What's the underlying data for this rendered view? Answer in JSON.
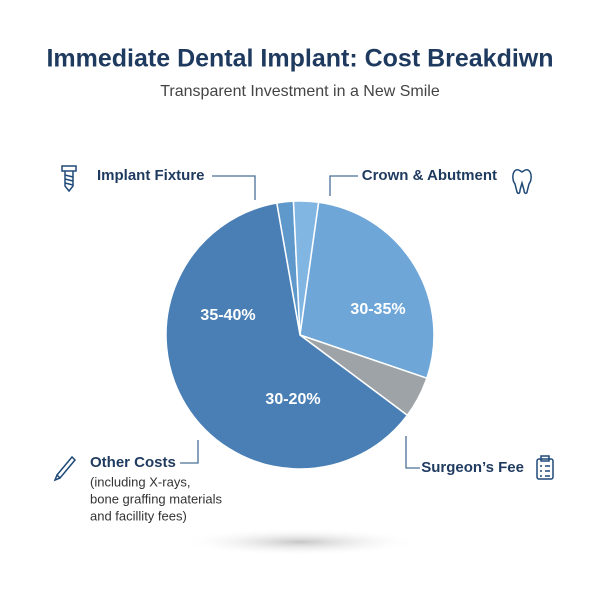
{
  "chart_data": {
    "type": "pie",
    "title": "Immediate Dental Implant: Cost Breakdiwn",
    "subtitle": "Transparent Investment in a New Smile",
    "values": [
      2,
      3,
      28,
      5,
      62
    ],
    "colors": [
      "#5f98cb",
      "#82b6e2",
      "#6ea6d8",
      "#9ea3a8",
      "#4a7fb5"
    ],
    "annotations": [
      "35-40%",
      "30-35%",
      "30-20%"
    ],
    "callouts": [
      {
        "label": "Implant Fixture"
      },
      {
        "label": "Crown & Abutment"
      },
      {
        "label": "Surgeon’s Fee"
      },
      {
        "label": "Other Costs",
        "note": [
          "(including X-rays,",
          "bone graffing materials",
          "and facillity fees)"
        ]
      }
    ]
  }
}
